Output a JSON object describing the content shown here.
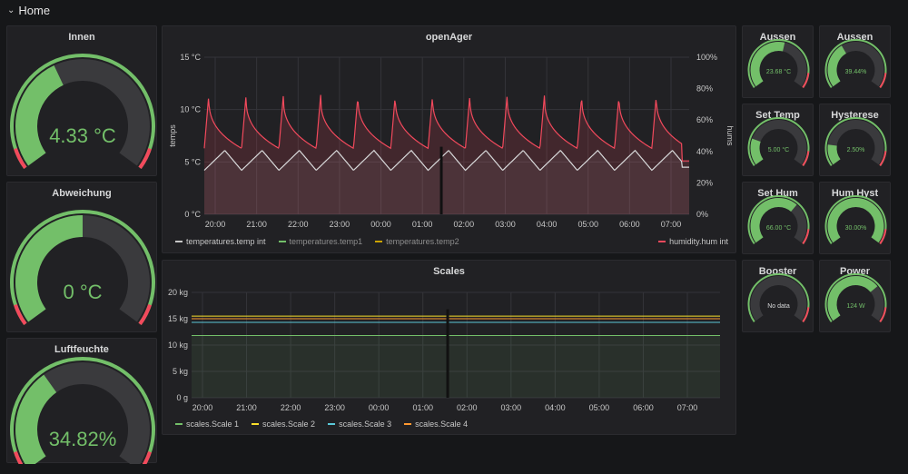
{
  "header": {
    "title": "Home"
  },
  "colors": {
    "green": "#73bf69",
    "red": "#f2495c",
    "track": "#3a3a3d",
    "yellow": "#fade2a",
    "orange": "#ff9830",
    "blue": "#5794f2",
    "panel": "#212124"
  },
  "gauges": [
    {
      "id": "innen",
      "title": "Innen",
      "value_text": "4.33 °C",
      "fill": 0.4,
      "color": "#73bf69",
      "threshold": 0.07
    },
    {
      "id": "abweichung",
      "title": "Abweichung",
      "value_text": "0 °C",
      "fill": 0.5,
      "color": "#73bf69",
      "threshold": 0.07
    },
    {
      "id": "luftfeuchte",
      "title": "Luftfeuchte",
      "value_text": "34.82%",
      "fill": 0.36,
      "color": "#73bf69",
      "threshold": 0.07
    },
    {
      "id": "aussen-temp",
      "title": "Aussen",
      "value_text": "23.68 °C",
      "fill": 0.55,
      "color": "#73bf69",
      "threshold": 0.0
    },
    {
      "id": "aussen-hum",
      "title": "Aussen",
      "value_text": "39.44%",
      "fill": 0.38,
      "color": "#73bf69",
      "threshold": 0.0
    },
    {
      "id": "set-temp",
      "title": "Set Temp",
      "value_text": "5.00 °C",
      "fill": 0.22,
      "color": "#73bf69",
      "threshold": 0.0
    },
    {
      "id": "hysterese",
      "title": "Hysterese",
      "value_text": "2.50%",
      "fill": 0.17,
      "color": "#73bf69",
      "threshold": 0.0
    },
    {
      "id": "set-hum",
      "title": "Set Hum",
      "value_text": "66.00 °C",
      "fill": 0.66,
      "color": "#73bf69",
      "threshold": 0.0
    },
    {
      "id": "hum-hyst",
      "title": "Hum Hyst",
      "value_text": "30.00%",
      "fill": 1.0,
      "color": "#73bf69",
      "threshold": 0.0
    },
    {
      "id": "booster",
      "title": "Booster",
      "value_text": "No data",
      "fill": 0.0,
      "color": "#73bf69",
      "threshold": 0.0
    },
    {
      "id": "power",
      "title": "Power",
      "value_text": "124 W",
      "fill": 0.7,
      "color": "#73bf69",
      "threshold": 0.0
    }
  ],
  "openager": {
    "title": "openAger",
    "ylabel_left": "temps",
    "ylabel_right": "hums",
    "yticks_left": [
      "15 °C",
      "10 °C",
      "5 °C",
      "0 °C"
    ],
    "yticks_right": [
      "100%",
      "80%",
      "60%",
      "40%",
      "20%",
      "0%"
    ],
    "xticks": [
      "20:00",
      "21:00",
      "22:00",
      "23:00",
      "00:00",
      "01:00",
      "02:00",
      "03:00",
      "04:00",
      "05:00",
      "06:00",
      "07:00"
    ],
    "legend": [
      {
        "label": "temperatures.temp int",
        "color": "#c7c7c7"
      },
      {
        "label": "temperatures.temp1",
        "color": "#73bf69"
      },
      {
        "label": "temperatures.temp2",
        "color": "#cca300"
      }
    ],
    "legend_right": {
      "label": "humidity.hum int",
      "color": "#f2495c"
    }
  },
  "scales": {
    "title": "Scales",
    "yticks": [
      "20 kg",
      "15 kg",
      "10 kg",
      "5 kg",
      "0 g"
    ],
    "xticks": [
      "20:00",
      "21:00",
      "22:00",
      "23:00",
      "00:00",
      "01:00",
      "02:00",
      "03:00",
      "04:00",
      "05:00",
      "06:00",
      "07:00"
    ],
    "legend": [
      {
        "label": "scales.Scale 1",
        "color": "#73bf69"
      },
      {
        "label": "scales.Scale 2",
        "color": "#fade2a"
      },
      {
        "label": "scales.Scale 3",
        "color": "#5ac8d8"
      },
      {
        "label": "scales.Scale 4",
        "color": "#ff9830"
      }
    ]
  },
  "chart_data": [
    {
      "type": "line",
      "title": "openAger",
      "ylabel": "temps",
      "y2label": "hums",
      "ylim": [
        0,
        15
      ],
      "y2lim": [
        0,
        100
      ],
      "x": [
        "20:00",
        "21:00",
        "22:00",
        "23:00",
        "00:00",
        "01:00",
        "02:00",
        "03:00",
        "04:00",
        "05:00",
        "06:00",
        "07:00"
      ],
      "series": [
        {
          "name": "temperatures.temp int",
          "axis": "left",
          "pattern": "sawtooth",
          "min": 4.0,
          "max": 6.2,
          "cycles": 13
        },
        {
          "name": "humidity.hum int",
          "axis": "right",
          "pattern": "sawtooth",
          "min": 40,
          "max": 75,
          "cycles": 13
        }
      ]
    },
    {
      "type": "line",
      "title": "Scales",
      "ylim": [
        0,
        20
      ],
      "x": [
        "20:00",
        "21:00",
        "22:00",
        "23:00",
        "00:00",
        "01:00",
        "02:00",
        "03:00",
        "04:00",
        "05:00",
        "06:00",
        "07:00"
      ],
      "series": [
        {
          "name": "scales.Scale 1",
          "values": [
            11.8,
            11.8,
            11.8,
            11.8,
            11.8,
            11.8,
            11.8,
            11.8,
            11.8,
            11.8,
            11.8,
            11.8
          ]
        },
        {
          "name": "scales.Scale 2",
          "values": [
            15.5,
            15.5,
            15.5,
            15.5,
            15.5,
            15.5,
            15.5,
            15.5,
            15.5,
            15.5,
            15.5,
            15.5
          ]
        },
        {
          "name": "scales.Scale 3",
          "values": [
            14.3,
            14.3,
            14.3,
            14.3,
            14.3,
            14.3,
            14.3,
            14.3,
            14.3,
            14.3,
            14.3,
            14.3
          ]
        },
        {
          "name": "scales.Scale 4",
          "values": [
            15.0,
            15.0,
            15.0,
            15.0,
            15.0,
            15.0,
            15.0,
            15.0,
            15.0,
            15.0,
            15.0,
            15.0
          ]
        }
      ]
    }
  ]
}
